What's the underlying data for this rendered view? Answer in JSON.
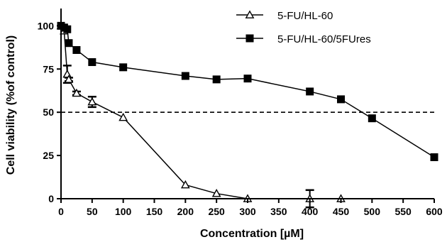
{
  "chart_data": {
    "type": "line",
    "xlabel": "Concentration [µM]",
    "ylabel": "Cell viability (%of control)",
    "xlim": [
      0,
      600
    ],
    "ylim": [
      0,
      110
    ],
    "xticks": [
      0,
      50,
      100,
      150,
      200,
      250,
      300,
      350,
      400,
      450,
      500,
      550,
      600
    ],
    "yticks": [
      0,
      25,
      50,
      75,
      100
    ],
    "reference_line": {
      "y": 50,
      "style": "dashed"
    },
    "grid": false,
    "legend_position": "top-right",
    "series": [
      {
        "name": "5-FU/HL-60",
        "marker": "open-triangle",
        "points": [
          {
            "x": 0,
            "y": 100,
            "err": 0
          },
          {
            "x": 5,
            "y": 97,
            "err": 0
          },
          {
            "x": 10,
            "y": 72,
            "err": 5
          },
          {
            "x": 12.5,
            "y": 69,
            "err": 1
          },
          {
            "x": 25,
            "y": 61,
            "err": 1
          },
          {
            "x": 50,
            "y": 56,
            "err": 3
          },
          {
            "x": 100,
            "y": 47,
            "err": 0
          },
          {
            "x": 200,
            "y": 8,
            "err": 0
          },
          {
            "x": 250,
            "y": 3,
            "err": 0
          },
          {
            "x": 300,
            "y": 0,
            "err": 0
          },
          {
            "x": 400,
            "y": 0,
            "err": 5
          },
          {
            "x": 450,
            "y": 0,
            "err": 0
          }
        ]
      },
      {
        "name": "5-FU/HL-60/5FUres",
        "marker": "filled-square",
        "points": [
          {
            "x": 0,
            "y": 100,
            "err": 0
          },
          {
            "x": 5,
            "y": 99,
            "err": 0
          },
          {
            "x": 10,
            "y": 98,
            "err": 0
          },
          {
            "x": 12.5,
            "y": 90,
            "err": 0
          },
          {
            "x": 25,
            "y": 86,
            "err": 0
          },
          {
            "x": 50,
            "y": 79,
            "err": 0
          },
          {
            "x": 100,
            "y": 76,
            "err": 0
          },
          {
            "x": 200,
            "y": 71,
            "err": 0
          },
          {
            "x": 250,
            "y": 69,
            "err": 0
          },
          {
            "x": 300,
            "y": 69.5,
            "err": 0
          },
          {
            "x": 400,
            "y": 62,
            "err": 0
          },
          {
            "x": 450,
            "y": 57.5,
            "err": 0
          },
          {
            "x": 500,
            "y": 46.5,
            "err": 0
          },
          {
            "x": 600,
            "y": 24,
            "err": 0
          }
        ]
      }
    ]
  }
}
